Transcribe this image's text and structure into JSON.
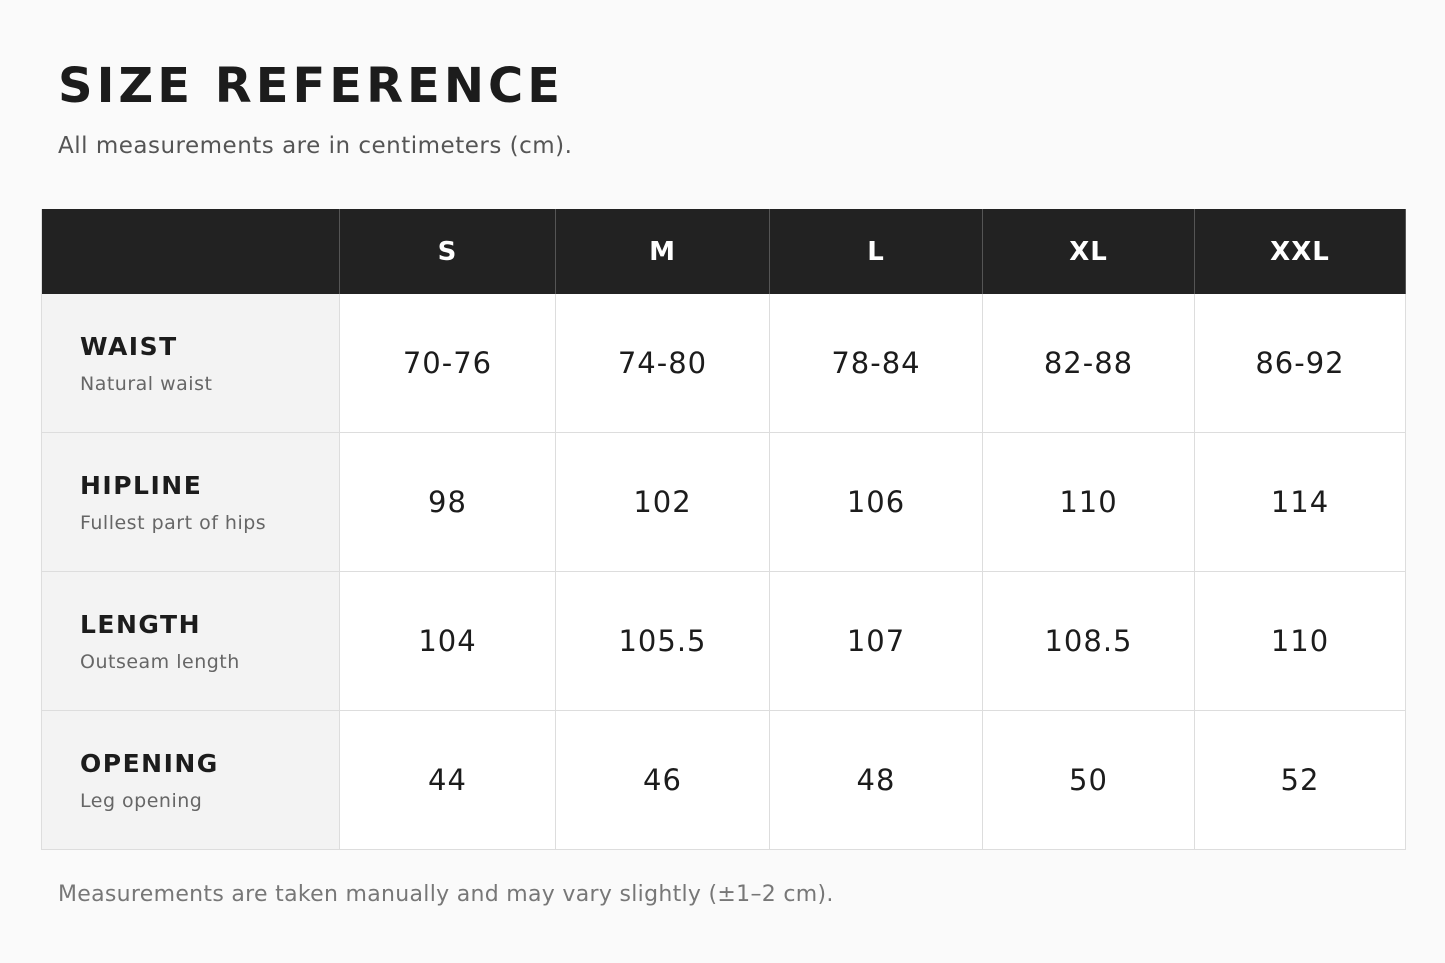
{
  "header": {
    "title": "SIZE REFERENCE",
    "subtitle": "All measurements are in centimeters (cm)."
  },
  "table": {
    "columns": [
      "S",
      "M",
      "L",
      "XL",
      "XXL"
    ],
    "rows": [
      {
        "label": "WAIST",
        "note": "Natural waist",
        "values": [
          "70-76",
          "74-80",
          "78-84",
          "82-88",
          "86-92"
        ]
      },
      {
        "label": "HIPLINE",
        "note": "Fullest part of hips",
        "values": [
          "98",
          "102",
          "106",
          "110",
          "114"
        ]
      },
      {
        "label": "LENGTH",
        "note": "Outseam length",
        "values": [
          "104",
          "105.5",
          "107",
          "108.5",
          "110"
        ]
      },
      {
        "label": "OPENING",
        "note": "Leg opening",
        "values": [
          "44",
          "46",
          "48",
          "50",
          "52"
        ]
      }
    ]
  },
  "footer": {
    "note": "Measurements are taken manually and may vary slightly (±1–2 cm)."
  }
}
